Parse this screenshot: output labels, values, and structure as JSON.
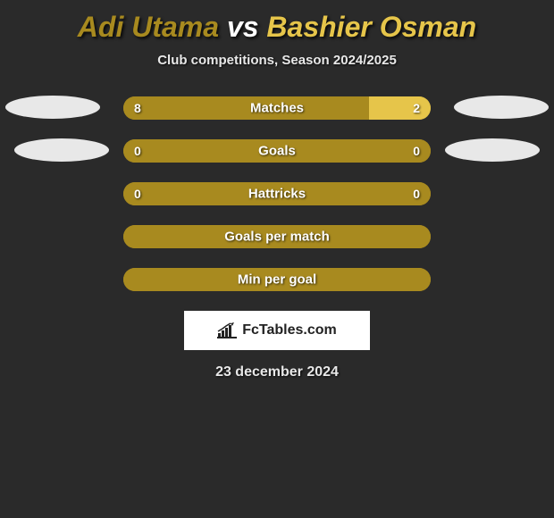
{
  "header": {
    "player1": "Adi Utama",
    "vs": "vs",
    "player2": "Bashier Osman",
    "player1_color": "#a88a1f",
    "player2_color": "#e6c54a",
    "subtitle": "Club competitions, Season 2024/2025"
  },
  "bars": [
    {
      "label": "Matches",
      "left_val": "8",
      "right_val": "2",
      "left_pct": 80,
      "right_pct": 20,
      "left_color": "#a88a1f",
      "right_color": "#e6c54a",
      "show_vals": true
    },
    {
      "label": "Goals",
      "left_val": "0",
      "right_val": "0",
      "left_pct": 100,
      "right_pct": 0,
      "left_color": "#a88a1f",
      "right_color": "#e6c54a",
      "show_vals": true
    },
    {
      "label": "Hattricks",
      "left_val": "0",
      "right_val": "0",
      "left_pct": 100,
      "right_pct": 0,
      "left_color": "#a88a1f",
      "right_color": "#e6c54a",
      "show_vals": true
    },
    {
      "label": "Goals per match",
      "left_val": "",
      "right_val": "",
      "left_pct": 100,
      "right_pct": 0,
      "left_color": "#a88a1f",
      "right_color": "#e6c54a",
      "show_vals": false
    },
    {
      "label": "Min per goal",
      "left_val": "",
      "right_val": "",
      "left_pct": 100,
      "right_pct": 0,
      "left_color": "#a88a1f",
      "right_color": "#e6c54a",
      "show_vals": false
    }
  ],
  "ellipse_color": "#e8e8e8",
  "brand": {
    "text": "FcTables.com"
  },
  "date": "23 december 2024"
}
